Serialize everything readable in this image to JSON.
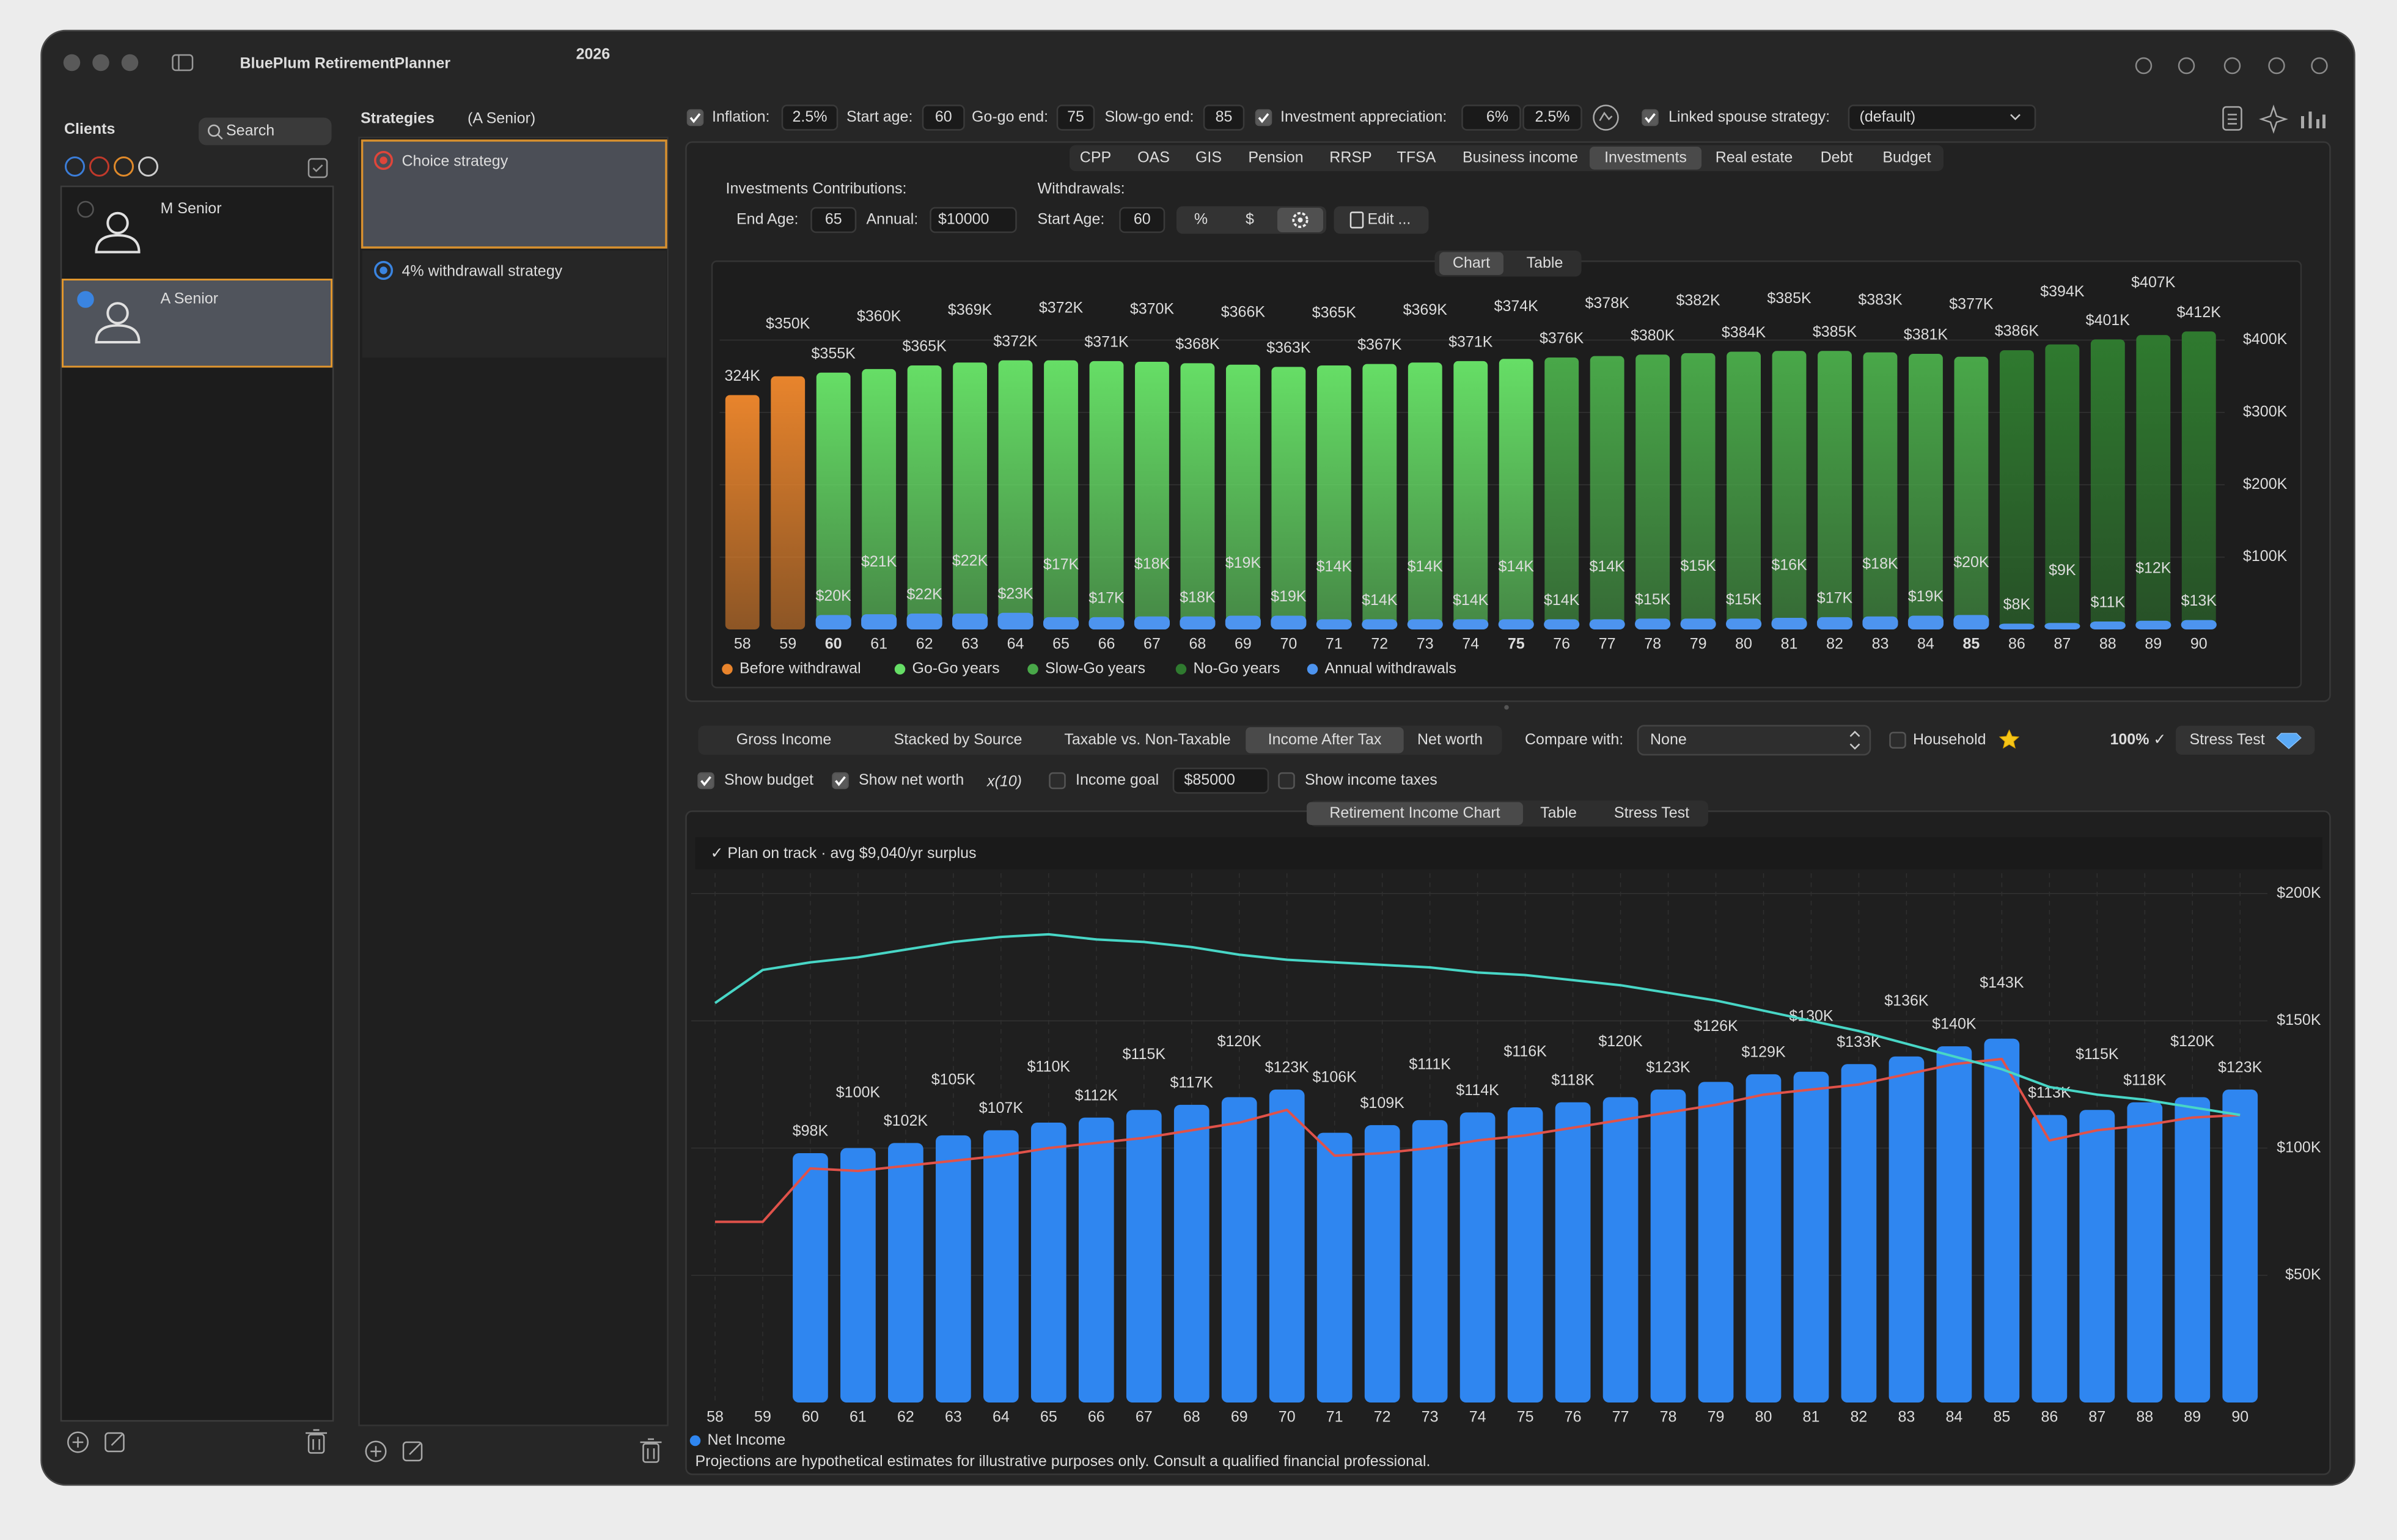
{
  "app": {
    "title": "BluePlum RetirementPlanner",
    "version": "2026"
  },
  "clients": {
    "title": "Clients",
    "search": "Search",
    "items": [
      "M Senior",
      "A Senior"
    ],
    "selected": 1
  },
  "strategies": {
    "title": "Strategies",
    "owner": "(A Senior)",
    "items": [
      "Choice strategy",
      "4% withdrawall strategy"
    ],
    "selected": 0
  },
  "settings": {
    "inflation": {
      "label": "Inflation:",
      "value": "2.5%"
    },
    "start_age": {
      "label": "Start age:",
      "value": 60
    },
    "go_go_end": {
      "label": "Go-go end:",
      "value": 75
    },
    "slow_go_end": {
      "label": "Slow-go end:",
      "value": 85
    },
    "appreciation": {
      "label": "Investment appreciation:",
      "values": [
        "6%",
        "2.5%"
      ]
    },
    "linked_spouse": {
      "label": "Linked spouse strategy:",
      "value": "(default)"
    }
  },
  "source_tabs": {
    "items": [
      "CPP",
      "OAS",
      "GIS",
      "Pension",
      "RRSP",
      "TFSA",
      "Business income",
      "Investments",
      "Real estate",
      "Debt",
      "Budget"
    ],
    "selected": 7
  },
  "investments": {
    "contributions_title": "Investments Contributions:",
    "end_age": {
      "label": "End Age:",
      "value": 65
    },
    "annual": {
      "label": "Annual:",
      "value": "$10000"
    },
    "withdrawals_title": "Withdrawals:",
    "start_age": {
      "label": "Start Age:",
      "value": 60
    },
    "modes": [
      "%",
      "$"
    ],
    "edit": "Edit ..."
  },
  "view_tabs": {
    "items": [
      "Chart",
      "Table"
    ],
    "selected": 0
  },
  "report_tabs": {
    "items": [
      "Gross Income",
      "Stacked by Source",
      "Taxable vs. Non-Taxable",
      "Income After Tax",
      "Net worth"
    ],
    "selected": 3
  },
  "compare": {
    "label": "Compare with:",
    "value": "None"
  },
  "household": "Household",
  "score": "100% ✓",
  "stress_test": "Stress Test",
  "options": {
    "show_budget": {
      "label": "Show budget",
      "checked": true
    },
    "show_net_worth": {
      "label": "Show net worth",
      "checked": true,
      "scale": "x(10)"
    },
    "income_goal": {
      "label": "Income goal",
      "checked": false,
      "placeholder": "$85000"
    },
    "show_income_taxes": {
      "label": "Show income taxes",
      "checked": false
    }
  },
  "chart_tabs": {
    "items": [
      "Retirement Income Chart",
      "Table",
      "Stress Test"
    ],
    "selected": 0
  },
  "status": "✓  Plan on track  ·  avg $9,040/yr surplus",
  "disclaimer": "Projections are hypothetical estimates for illustrative purposes only. Consult a qualified financial professional.",
  "chart_data": [
    {
      "type": "bar",
      "categories": [
        58,
        59,
        60,
        61,
        62,
        63,
        64,
        65,
        66,
        67,
        68,
        69,
        70,
        71,
        72,
        73,
        74,
        75,
        76,
        77,
        78,
        79,
        80,
        81,
        82,
        83,
        84,
        85,
        86,
        87,
        88,
        89,
        90
      ],
      "values": [
        324000,
        350000,
        355000,
        360000,
        365000,
        369000,
        372000,
        372000,
        371000,
        370000,
        368000,
        366000,
        363000,
        365000,
        367000,
        369000,
        371000,
        374000,
        376000,
        378000,
        380000,
        382000,
        384000,
        385000,
        385000,
        383000,
        381000,
        377000,
        386000,
        394000,
        401000,
        407000,
        412000
      ],
      "value_labels": [
        "324K",
        "$350K",
        "$355K",
        "$360K",
        "$365K",
        "$369K",
        "$372K",
        "$372K",
        "$371K",
        "$370K",
        "$368K",
        "$366K",
        "$363K",
        "$365K",
        "$367K",
        "$369K",
        "$371K",
        "$374K",
        "$376K",
        "$378K",
        "$380K",
        "$382K",
        "$384K",
        "$385K",
        "$385K",
        "$383K",
        "$381K",
        "$377K",
        "$386K",
        "$394K",
        "$401K",
        "$407K",
        "$412K"
      ],
      "phases": [
        {
          "name": "Before withdrawal",
          "color": "#e8842c"
        },
        {
          "name": "Go-Go years",
          "color": "#66de66"
        },
        {
          "name": "Slow-Go years",
          "color": "#49a849"
        },
        {
          "name": "No-Go years",
          "color": "#2f7a2f"
        }
      ],
      "series": [
        {
          "name": "Annual withdrawals",
          "color": "#4d94ef",
          "values": [
            null,
            null,
            20000,
            21000,
            22000,
            22000,
            23000,
            17000,
            17000,
            18000,
            18000,
            19000,
            19000,
            14000,
            14000,
            14000,
            14000,
            14000,
            14000,
            14000,
            15000,
            15000,
            15000,
            16000,
            17000,
            18000,
            19000,
            20000,
            8000,
            9000,
            11000,
            12000,
            13000
          ],
          "value_labels": [
            null,
            null,
            "$20K",
            "$21K",
            "$22K",
            "$22K",
            "$23K",
            "$17K",
            "$17K",
            "$18K",
            "$18K",
            "$19K",
            "$19K",
            "$14K",
            "$14K",
            "$14K",
            "$14K",
            "$14K",
            "$14K",
            "$14K",
            "$15K",
            "$15K",
            "$15K",
            "$16K",
            "$17K",
            "$18K",
            "$19K",
            "$20K",
            "$8K",
            "$9K",
            "$11K",
            "$12K",
            "$13K"
          ]
        }
      ],
      "ylim": [
        0,
        490000
      ],
      "yticks": [
        {
          "value": 100000,
          "label": "$100K"
        },
        {
          "value": 200000,
          "label": "$200K"
        },
        {
          "value": 300000,
          "label": "$300K"
        },
        {
          "value": 400000,
          "label": "$400K"
        }
      ]
    },
    {
      "type": "bar",
      "categories": [
        58,
        59,
        60,
        61,
        62,
        63,
        64,
        65,
        66,
        67,
        68,
        69,
        70,
        71,
        72,
        73,
        74,
        75,
        76,
        77,
        78,
        79,
        80,
        81,
        82,
        83,
        84,
        85,
        86,
        87,
        88,
        89,
        90
      ],
      "series": [
        {
          "name": "Net Income",
          "type": "bar",
          "color": "#2f86f0",
          "values": [
            null,
            null,
            98000,
            100000,
            102000,
            105000,
            107000,
            110000,
            112000,
            115000,
            117000,
            120000,
            123000,
            106000,
            109000,
            111000,
            114000,
            116000,
            118000,
            120000,
            123000,
            126000,
            129000,
            130000,
            133000,
            136000,
            140000,
            143000,
            113000,
            115000,
            118000,
            120000,
            123000
          ],
          "value_labels": [
            null,
            null,
            "$98K",
            "$100K",
            "$102K",
            "$105K",
            "$107K",
            "$110K",
            "$112K",
            "$115K",
            "$117K",
            "$120K",
            "$123K",
            "$106K",
            "$109K",
            "$111K",
            "$114K",
            "$116K",
            "$118K",
            "$120K",
            "$123K",
            "$126K",
            "$129K",
            "$130K",
            "$133K",
            "$136K",
            "$140K",
            "$143K",
            "$113K",
            "$115K",
            "$118K",
            "$120K",
            "$123K"
          ]
        },
        {
          "type": "line",
          "color": "#e0524a",
          "values": [
            71000,
            71000,
            92000,
            91000,
            93000,
            95000,
            97000,
            100000,
            102000,
            104000,
            107000,
            110000,
            115000,
            97000,
            98000,
            100000,
            103000,
            105000,
            108000,
            111000,
            114000,
            117000,
            121000,
            123000,
            125000,
            129000,
            133000,
            135000,
            103000,
            107000,
            109000,
            112000,
            113000
          ]
        },
        {
          "type": "line",
          "color": "#48d6c6",
          "values": [
            157000,
            170000,
            173000,
            175000,
            178000,
            181000,
            183000,
            184000,
            182000,
            181000,
            179000,
            176000,
            174000,
            173000,
            172000,
            171000,
            169000,
            168000,
            166000,
            164000,
            161000,
            158000,
            154000,
            150000,
            146000,
            141000,
            136000,
            131000,
            124000,
            121000,
            119000,
            116000,
            113000
          ]
        }
      ],
      "ylim": [
        0,
        208000
      ],
      "yticks": [
        {
          "value": 50000,
          "label": "$50K"
        },
        {
          "value": 100000,
          "label": "$100K"
        },
        {
          "value": 150000,
          "label": "$150K"
        },
        {
          "value": 200000,
          "label": "$200K"
        }
      ],
      "grid": true
    }
  ]
}
